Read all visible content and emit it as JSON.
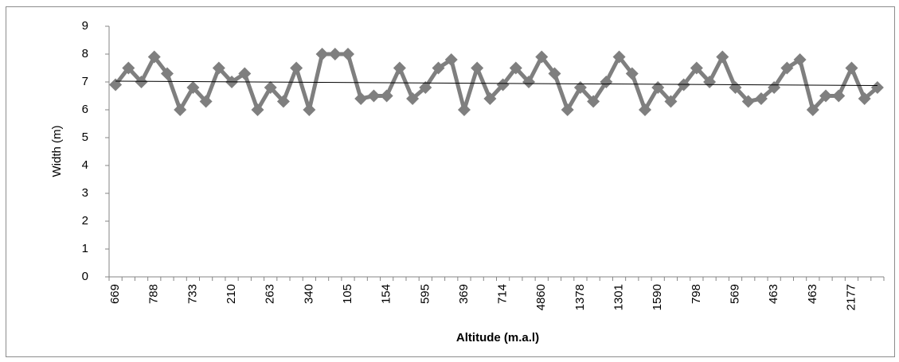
{
  "chart_data": {
    "type": "line",
    "x_label": "Altitude (m.a.l)",
    "y_label": "Width (m)",
    "categories": [
      "669",
      null,
      null,
      "788",
      null,
      null,
      "733",
      null,
      null,
      "210",
      null,
      null,
      "263",
      null,
      null,
      "340",
      null,
      null,
      "105",
      null,
      null,
      "154",
      null,
      null,
      "595",
      null,
      null,
      "369",
      null,
      null,
      "714",
      null,
      null,
      "4860",
      null,
      null,
      "1378",
      null,
      null,
      "1301",
      null,
      null,
      "1590",
      null,
      null,
      "798",
      null,
      null,
      "569",
      null,
      null,
      "463",
      null,
      null,
      "463",
      null,
      null,
      "2177",
      null,
      null
    ],
    "series": [
      {
        "color": "#7f7f7f",
        "values": [
          6.9,
          7.5,
          7.0,
          7.9,
          7.3,
          6.0,
          6.8,
          6.3,
          7.5,
          7.0,
          7.3,
          6.0,
          6.8,
          6.3,
          7.5,
          6.0,
          8.0,
          8.0,
          8.0,
          6.4,
          6.5,
          6.5,
          7.5,
          6.4,
          6.8,
          7.5,
          7.8,
          6.0,
          7.5,
          6.4,
          6.9,
          7.5,
          7.0,
          7.9,
          7.3,
          6.0,
          6.8,
          6.3,
          7.0,
          7.9,
          7.3,
          6.0,
          6.8,
          6.3,
          6.9,
          7.5,
          7.0,
          7.9,
          6.8,
          6.3,
          6.4,
          6.8,
          7.5,
          7.8,
          6.0,
          6.5,
          6.5,
          7.5,
          6.4,
          6.8
        ]
      }
    ],
    "trendline": {
      "color": "#000000",
      "values": [
        7.03,
        6.87
      ]
    },
    "ylim": [
      0,
      9
    ],
    "yticks": [
      0,
      1,
      2,
      3,
      4,
      5,
      6,
      7,
      8,
      9
    ]
  }
}
